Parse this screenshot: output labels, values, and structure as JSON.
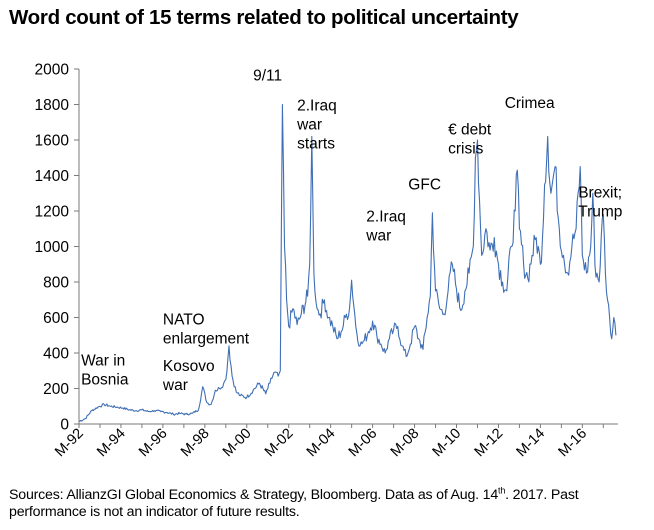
{
  "title": "Word count of 15 terms related to political uncertainty",
  "source": {
    "prefix": "Sources: AllianzGI Global Economics & Strategy, Bloomberg. Data as of Aug. 14",
    "sup": "th",
    "suffix": ". 2017. Past performance is not an indicator of future results."
  },
  "chart_data": {
    "type": "line",
    "title": "Word count of 15 terms related to political uncertainty",
    "xlabel": "",
    "ylabel": "",
    "ylim": [
      0,
      2000
    ],
    "yticks": [
      0,
      200,
      400,
      600,
      800,
      1000,
      1200,
      1400,
      1600,
      1800,
      2000
    ],
    "xlim": [
      1992.0,
      2017.7
    ],
    "xticks": [
      {
        "x": 1992,
        "label": "M-92"
      },
      {
        "x": 1994,
        "label": "M-94"
      },
      {
        "x": 1996,
        "label": "M-96"
      },
      {
        "x": 1998,
        "label": "M-98"
      },
      {
        "x": 2000,
        "label": "M-00"
      },
      {
        "x": 2002,
        "label": "M-02"
      },
      {
        "x": 2004,
        "label": "M-04"
      },
      {
        "x": 2006,
        "label": "M-06"
      },
      {
        "x": 2008,
        "label": "M-08"
      },
      {
        "x": 2010,
        "label": "M-10"
      },
      {
        "x": 2012,
        "label": "M-12"
      },
      {
        "x": 2014,
        "label": "M-14"
      },
      {
        "x": 2016,
        "label": "M-16"
      }
    ],
    "line_color": "#3f6fb6",
    "series": [
      {
        "name": "Word count",
        "points": [
          [
            1992.0,
            15
          ],
          [
            1992.3,
            30
          ],
          [
            1992.6,
            75
          ],
          [
            1992.9,
            95
          ],
          [
            1993.2,
            110
          ],
          [
            1993.5,
            100
          ],
          [
            1993.8,
            95
          ],
          [
            1994.1,
            90
          ],
          [
            1994.4,
            80
          ],
          [
            1994.7,
            75
          ],
          [
            1995.0,
            80
          ],
          [
            1995.3,
            70
          ],
          [
            1995.6,
            75
          ],
          [
            1995.9,
            70
          ],
          [
            1996.2,
            65
          ],
          [
            1996.5,
            55
          ],
          [
            1996.8,
            60
          ],
          [
            1997.1,
            55
          ],
          [
            1997.4,
            60
          ],
          [
            1997.7,
            80
          ],
          [
            1997.9,
            210
          ],
          [
            1998.1,
            120
          ],
          [
            1998.3,
            110
          ],
          [
            1998.5,
            190
          ],
          [
            1998.7,
            200
          ],
          [
            1998.9,
            230
          ],
          [
            1999.0,
            250
          ],
          [
            1999.15,
            440
          ],
          [
            1999.3,
            270
          ],
          [
            1999.5,
            180
          ],
          [
            1999.7,
            160
          ],
          [
            2000.0,
            150
          ],
          [
            2000.3,
            190
          ],
          [
            2000.6,
            230
          ],
          [
            2000.9,
            170
          ],
          [
            2001.1,
            230
          ],
          [
            2001.3,
            290
          ],
          [
            2001.5,
            270
          ],
          [
            2001.6,
            300
          ],
          [
            2001.7,
            1800
          ],
          [
            2001.8,
            1000
          ],
          [
            2001.9,
            700
          ],
          [
            2002.0,
            550
          ],
          [
            2002.2,
            650
          ],
          [
            2002.4,
            560
          ],
          [
            2002.6,
            620
          ],
          [
            2002.9,
            720
          ],
          [
            2003.0,
            900
          ],
          [
            2003.1,
            1620
          ],
          [
            2003.2,
            850
          ],
          [
            2003.35,
            650
          ],
          [
            2003.5,
            620
          ],
          [
            2003.7,
            700
          ],
          [
            2003.9,
            600
          ],
          [
            2004.1,
            550
          ],
          [
            2004.3,
            480
          ],
          [
            2004.5,
            520
          ],
          [
            2004.7,
            600
          ],
          [
            2004.9,
            650
          ],
          [
            2005.0,
            810
          ],
          [
            2005.2,
            550
          ],
          [
            2005.4,
            440
          ],
          [
            2005.6,
            470
          ],
          [
            2005.8,
            520
          ],
          [
            2006.0,
            580
          ],
          [
            2006.2,
            500
          ],
          [
            2006.4,
            450
          ],
          [
            2006.6,
            400
          ],
          [
            2006.8,
            480
          ],
          [
            2007.0,
            530
          ],
          [
            2007.2,
            550
          ],
          [
            2007.4,
            440
          ],
          [
            2007.6,
            380
          ],
          [
            2007.8,
            450
          ],
          [
            2008.0,
            550
          ],
          [
            2008.2,
            480
          ],
          [
            2008.4,
            420
          ],
          [
            2008.6,
            600
          ],
          [
            2008.75,
            720
          ],
          [
            2008.85,
            1190
          ],
          [
            2009.0,
            750
          ],
          [
            2009.2,
            650
          ],
          [
            2009.4,
            620
          ],
          [
            2009.6,
            750
          ],
          [
            2009.8,
            900
          ],
          [
            2010.0,
            760
          ],
          [
            2010.2,
            640
          ],
          [
            2010.4,
            750
          ],
          [
            2010.6,
            850
          ],
          [
            2010.8,
            1000
          ],
          [
            2010.9,
            1500
          ],
          [
            2011.0,
            1600
          ],
          [
            2011.1,
            1250
          ],
          [
            2011.2,
            950
          ],
          [
            2011.4,
            1100
          ],
          [
            2011.6,
            980
          ],
          [
            2011.8,
            1050
          ],
          [
            2012.0,
            900
          ],
          [
            2012.2,
            800
          ],
          [
            2012.4,
            750
          ],
          [
            2012.6,
            1000
          ],
          [
            2012.8,
            1200
          ],
          [
            2012.9,
            1430
          ],
          [
            2013.0,
            1100
          ],
          [
            2013.2,
            900
          ],
          [
            2013.4,
            820
          ],
          [
            2013.6,
            950
          ],
          [
            2013.8,
            1050
          ],
          [
            2014.0,
            900
          ],
          [
            2014.1,
            1050
          ],
          [
            2014.2,
            1350
          ],
          [
            2014.35,
            1620
          ],
          [
            2014.5,
            1300
          ],
          [
            2014.7,
            1450
          ],
          [
            2014.9,
            1100
          ],
          [
            2015.1,
            950
          ],
          [
            2015.3,
            850
          ],
          [
            2015.5,
            1000
          ],
          [
            2015.7,
            1100
          ],
          [
            2015.9,
            1450
          ],
          [
            2016.0,
            950
          ],
          [
            2016.2,
            850
          ],
          [
            2016.4,
            1000
          ],
          [
            2016.5,
            1300
          ],
          [
            2016.6,
            900
          ],
          [
            2016.8,
            800
          ],
          [
            2016.9,
            1050
          ],
          [
            2017.0,
            1180
          ],
          [
            2017.1,
            850
          ],
          [
            2017.2,
            700
          ],
          [
            2017.3,
            600
          ],
          [
            2017.4,
            480
          ],
          [
            2017.5,
            600
          ],
          [
            2017.6,
            500
          ]
        ]
      }
    ],
    "annotations": [
      {
        "lines": [
          "War in",
          "Bosnia"
        ],
        "x": 1992.1,
        "y": 330
      },
      {
        "lines": [
          "NATO",
          "enlargement"
        ],
        "x": 1996.0,
        "y": 560
      },
      {
        "lines": [
          "Kosovo",
          "war"
        ],
        "x": 1996.0,
        "y": 300
      },
      {
        "lines": [
          "9/11"
        ],
        "x": 2000.3,
        "y": 1935
      },
      {
        "lines": [
          "2.Iraq",
          "war",
          "starts"
        ],
        "x": 2002.4,
        "y": 1765
      },
      {
        "lines": [
          "2.Iraq",
          "war"
        ],
        "x": 2005.7,
        "y": 1140
      },
      {
        "lines": [
          "GFC"
        ],
        "x": 2007.7,
        "y": 1320
      },
      {
        "lines": [
          "€ debt",
          "crisis"
        ],
        "x": 2009.6,
        "y": 1630
      },
      {
        "lines": [
          "Crimea"
        ],
        "x": 2012.3,
        "y": 1780
      },
      {
        "lines": [
          "Brexit;",
          "Trump"
        ],
        "x": 2015.8,
        "y": 1275
      }
    ]
  }
}
